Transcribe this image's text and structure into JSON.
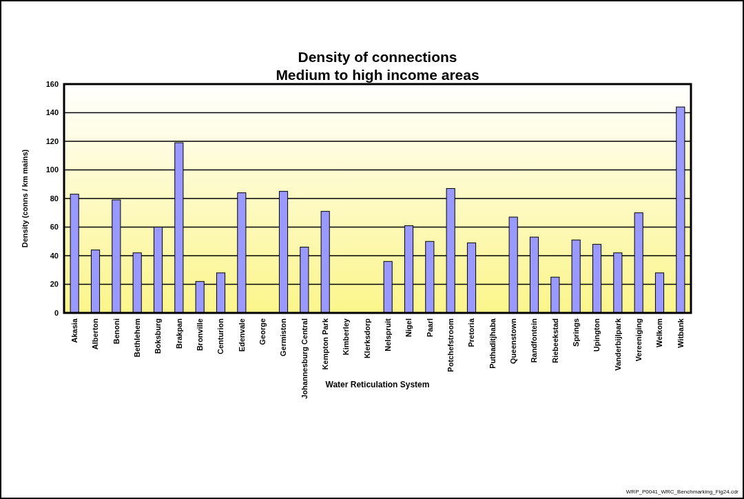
{
  "chart_data": {
    "type": "bar",
    "title": "Density of connections\nMedium to high income areas",
    "xlabel": "Water Reticulation System",
    "ylabel": "Density (conns / km mains)",
    "categories": [
      "Akasia",
      "Alberton",
      "Benoni",
      "Bethlehem",
      "Boksburg",
      "Brakpan",
      "Bronville",
      "Centurion",
      "Edenvale",
      "George",
      "Germiston",
      "Johannesburg Central",
      "Kempton Park",
      "Kimberley",
      "Klerksdorp",
      "Nelspruit",
      "Nigel",
      "Paarl",
      "Potchefstroom",
      "Pretoria",
      "Puthaditjhaba",
      "Queenstown",
      "Randfontein",
      "Riebeekstad",
      "Springs",
      "Upington",
      "Vanderbijlpark",
      "Vereeniging",
      "Welkom",
      "Witbank"
    ],
    "values": [
      83,
      44,
      79,
      42,
      60,
      119,
      22,
      28,
      84,
      null,
      85,
      46,
      71,
      null,
      null,
      36,
      61,
      50,
      87,
      49,
      null,
      67,
      53,
      25,
      51,
      48,
      42,
      70,
      28,
      144
    ],
    "color": "#9999ff",
    "ylim": [
      0,
      160
    ],
    "yticks": [
      0,
      20,
      40,
      60,
      80,
      100,
      120,
      140,
      160
    ],
    "grid": "y",
    "annotations": [
      "WRP_P0041_WRC_Benchmarking_Fig24.cdr"
    ]
  }
}
